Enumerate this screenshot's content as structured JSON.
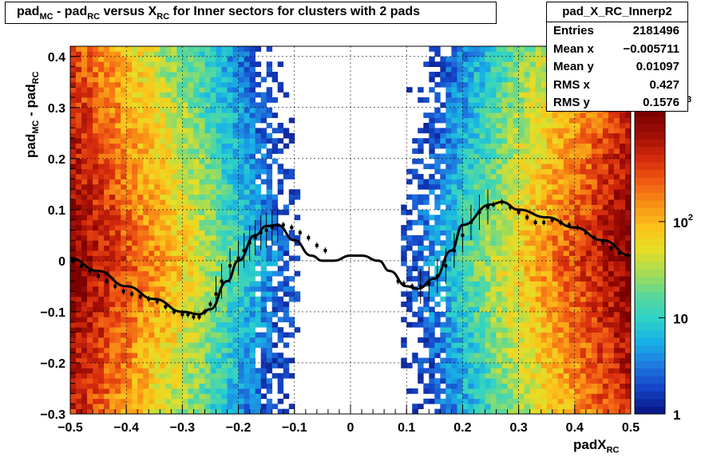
{
  "title": {
    "parts": [
      "pad",
      "MC",
      " - pad",
      "RC",
      " versus X",
      "RC",
      " for Inner sectors for clusters with 2 pads"
    ]
  },
  "stats": {
    "name": "pad_X_RC_Innerp2",
    "rows": [
      {
        "label": "Entries",
        "value": "2181496"
      },
      {
        "label": "Mean x",
        "value": "−0.005711"
      },
      {
        "label": "Mean y",
        "value": "0.01097"
      },
      {
        "label": "RMS x",
        "value": "0.427"
      },
      {
        "label": "RMS y",
        "value": "0.1576"
      }
    ]
  },
  "axis_labels": {
    "x_main": "padX",
    "x_sub": "RC",
    "y_parts": [
      "pad",
      "MC",
      " - pad",
      "RC"
    ]
  },
  "palette_labels": {
    "one": "1",
    "ten": "10",
    "hundred_base": "10",
    "hundred_exp": "2",
    "thousand_exp": "3"
  },
  "chart_data": {
    "type": "heatmap",
    "title": "pad_MC - pad_RC versus X_RC for Inner sectors for clusters with 2 pads",
    "xlabel": "padX_RC",
    "ylabel": "pad_MC - pad_RC",
    "xlim": [
      -0.5,
      0.5
    ],
    "ylim": [
      -0.3,
      0.42
    ],
    "z_scale": "log",
    "z_range": [
      1,
      1500
    ],
    "grid": true,
    "x_ticks": [
      "−0.5",
      "−0.4",
      "−0.3",
      "−0.2",
      "−0.1",
      "0",
      "0.1",
      "0.2",
      "0.3",
      "0.4",
      "0.5"
    ],
    "y_ticks": [
      "−0.3",
      "−0.2",
      "−0.1",
      "0",
      "0.1",
      "0.2",
      "0.3",
      "0.4"
    ],
    "profile": {
      "x": [
        -0.495,
        -0.48,
        -0.465,
        -0.45,
        -0.435,
        -0.42,
        -0.405,
        -0.39,
        -0.375,
        -0.36,
        -0.345,
        -0.33,
        -0.315,
        -0.3,
        -0.29,
        -0.28,
        -0.27,
        -0.26,
        -0.25,
        -0.24,
        -0.23,
        -0.215,
        -0.2,
        -0.19,
        -0.18,
        -0.17,
        -0.16,
        -0.15,
        -0.14,
        -0.13,
        -0.12,
        -0.105,
        -0.09,
        -0.075,
        -0.06,
        -0.045,
        0.085,
        0.095,
        0.11,
        0.125,
        0.14,
        0.155,
        0.17,
        0.185,
        0.2,
        0.215,
        0.23,
        0.245,
        0.255,
        0.27,
        0.285,
        0.3,
        0.315,
        0.33,
        0.345,
        0.36,
        0.375,
        0.39,
        0.405,
        0.42,
        0.435,
        0.45,
        0.465,
        0.48,
        0.495
      ],
      "y": [
        0.0,
        -0.01,
        -0.02,
        -0.03,
        -0.04,
        -0.05,
        -0.06,
        -0.065,
        -0.07,
        -0.075,
        -0.08,
        -0.09,
        -0.1,
        -0.105,
        -0.105,
        -0.11,
        -0.11,
        -0.1,
        -0.085,
        -0.065,
        -0.04,
        -0.01,
        0.005,
        0.02,
        0.035,
        0.045,
        0.055,
        0.06,
        0.065,
        0.07,
        0.07,
        0.065,
        0.055,
        0.045,
        0.03,
        0.02,
        -0.04,
        -0.045,
        -0.05,
        -0.05,
        -0.045,
        -0.03,
        -0.01,
        0.02,
        0.05,
        0.075,
        0.095,
        0.105,
        0.11,
        0.115,
        0.105,
        0.095,
        0.085,
        0.075,
        0.075,
        0.08,
        0.075,
        0.07,
        0.065,
        0.055,
        0.045,
        0.035,
        0.025,
        0.015,
        0.01
      ]
    },
    "fit_curve": {
      "x": [
        -0.5,
        -0.45,
        -0.4,
        -0.35,
        -0.3,
        -0.27,
        -0.25,
        -0.22,
        -0.2,
        -0.17,
        -0.15,
        -0.13,
        -0.1,
        -0.07,
        -0.05,
        -0.03,
        0.0,
        0.02,
        0.05,
        0.07,
        0.1,
        0.12,
        0.15,
        0.18,
        0.2,
        0.25,
        0.27,
        0.3,
        0.35,
        0.4,
        0.45,
        0.5
      ],
      "y": [
        0.005,
        -0.02,
        -0.05,
        -0.075,
        -0.1,
        -0.105,
        -0.095,
        -0.04,
        0.0,
        0.05,
        0.068,
        0.07,
        0.04,
        0.01,
        0.0,
        0.0,
        0.01,
        0.01,
        0.0,
        -0.02,
        -0.05,
        -0.055,
        -0.035,
        0.02,
        0.07,
        0.11,
        0.115,
        0.1,
        0.085,
        0.065,
        0.04,
        0.01
      ]
    }
  }
}
